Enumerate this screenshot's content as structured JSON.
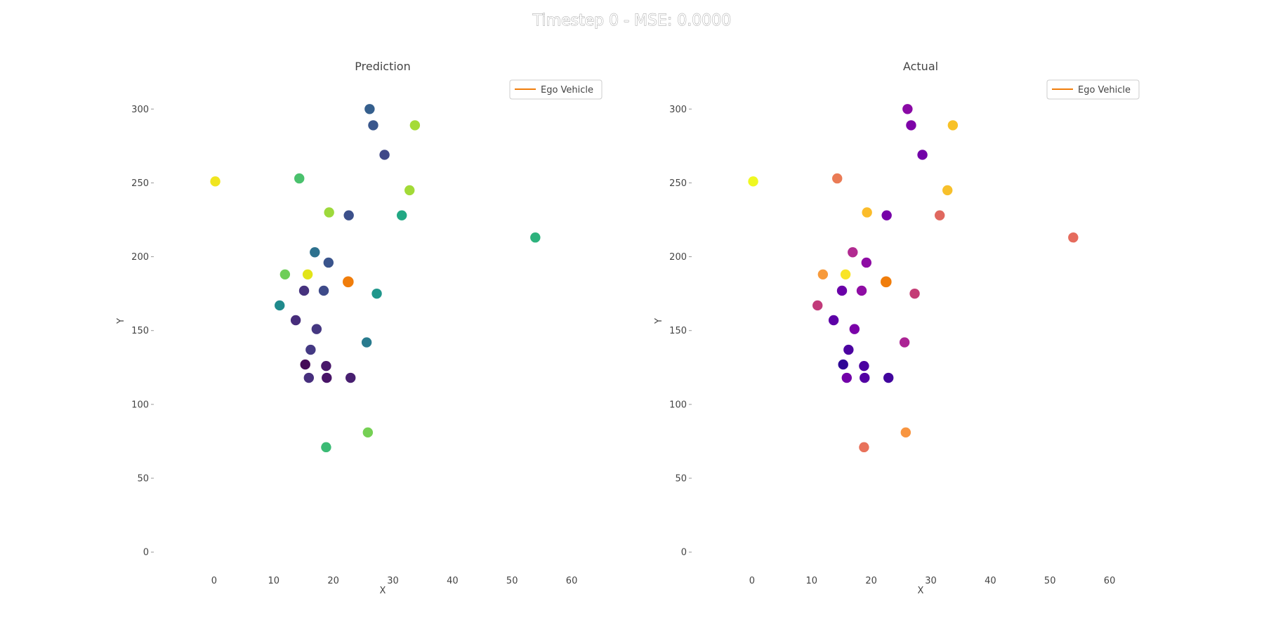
{
  "figure": {
    "suptitle": "Timestep 0 - MSE: 0.0000"
  },
  "chart_data": [
    {
      "type": "scatter",
      "title": "Prediction",
      "xlabel": "X",
      "ylabel": "Y",
      "xlim": [
        -10,
        66
      ],
      "ylim": [
        -8,
        322
      ],
      "xticks": [
        0,
        10,
        20,
        30,
        40,
        50,
        60
      ],
      "yticks": [
        0,
        50,
        100,
        150,
        200,
        250,
        300
      ],
      "grid": false,
      "legend": {
        "placement": "top-right",
        "entries": [
          {
            "label": "Ego Vehicle",
            "color": "#f07d0b"
          }
        ]
      },
      "colormap": "viridis",
      "ego": {
        "x": 22.5,
        "y": 183,
        "color": "#f07d0b"
      },
      "points": [
        {
          "x": 26.1,
          "y": 300,
          "color": "#355f8d"
        },
        {
          "x": 26.7,
          "y": 289,
          "color": "#39568c"
        },
        {
          "x": 33.7,
          "y": 289,
          "color": "#a5db36"
        },
        {
          "x": 28.6,
          "y": 269,
          "color": "#3f4788"
        },
        {
          "x": 0.2,
          "y": 251,
          "color": "#f0e51f"
        },
        {
          "x": 14.3,
          "y": 253,
          "color": "#4ac16d"
        },
        {
          "x": 32.8,
          "y": 245,
          "color": "#a2da37"
        },
        {
          "x": 19.3,
          "y": 230,
          "color": "#9dd93b"
        },
        {
          "x": 22.6,
          "y": 228,
          "color": "#3c508b"
        },
        {
          "x": 31.5,
          "y": 228,
          "color": "#22a884"
        },
        {
          "x": 53.9,
          "y": 213,
          "color": "#2db27d"
        },
        {
          "x": 16.9,
          "y": 203,
          "color": "#2d718e"
        },
        {
          "x": 19.2,
          "y": 196,
          "color": "#3a548c"
        },
        {
          "x": 11.9,
          "y": 188,
          "color": "#6ece58"
        },
        {
          "x": 15.7,
          "y": 188,
          "color": "#e2e418"
        },
        {
          "x": 15.1,
          "y": 177,
          "color": "#46327e"
        },
        {
          "x": 18.4,
          "y": 177,
          "color": "#3e4a89"
        },
        {
          "x": 27.3,
          "y": 175,
          "color": "#1f968b"
        },
        {
          "x": 11.0,
          "y": 167,
          "color": "#1f8a8c"
        },
        {
          "x": 13.7,
          "y": 157,
          "color": "#472d7b"
        },
        {
          "x": 17.2,
          "y": 151,
          "color": "#453781"
        },
        {
          "x": 25.6,
          "y": 142,
          "color": "#297b8e"
        },
        {
          "x": 16.2,
          "y": 137,
          "color": "#443983"
        },
        {
          "x": 15.3,
          "y": 127,
          "color": "#450b57"
        },
        {
          "x": 18.8,
          "y": 126,
          "color": "#481769"
        },
        {
          "x": 15.9,
          "y": 118,
          "color": "#472f7d"
        },
        {
          "x": 18.9,
          "y": 118,
          "color": "#481467"
        },
        {
          "x": 22.9,
          "y": 118,
          "color": "#481f70"
        },
        {
          "x": 25.8,
          "y": 81,
          "color": "#75d054"
        },
        {
          "x": 18.8,
          "y": 71,
          "color": "#3bbb75"
        }
      ]
    },
    {
      "type": "scatter",
      "title": "Actual",
      "xlabel": "X",
      "ylabel": "Y",
      "xlim": [
        -10,
        66
      ],
      "ylim": [
        -8,
        322
      ],
      "xticks": [
        0,
        10,
        20,
        30,
        40,
        50,
        60
      ],
      "yticks": [
        0,
        50,
        100,
        150,
        200,
        250,
        300
      ],
      "grid": false,
      "legend": {
        "placement": "top-right",
        "entries": [
          {
            "label": "Ego Vehicle",
            "color": "#f07d0b"
          }
        ]
      },
      "colormap": "plasma",
      "ego": {
        "x": 22.5,
        "y": 183,
        "color": "#f07d0b"
      },
      "points": [
        {
          "x": 26.1,
          "y": 300,
          "color": "#8a09a5"
        },
        {
          "x": 26.7,
          "y": 289,
          "color": "#7e03a8"
        },
        {
          "x": 33.7,
          "y": 289,
          "color": "#f8c126"
        },
        {
          "x": 28.6,
          "y": 269,
          "color": "#7201a8"
        },
        {
          "x": 0.2,
          "y": 251,
          "color": "#eff821"
        },
        {
          "x": 14.3,
          "y": 253,
          "color": "#ea7b55"
        },
        {
          "x": 32.8,
          "y": 245,
          "color": "#f7c02b"
        },
        {
          "x": 19.3,
          "y": 230,
          "color": "#fbbc2a"
        },
        {
          "x": 22.6,
          "y": 228,
          "color": "#7601a8"
        },
        {
          "x": 31.5,
          "y": 228,
          "color": "#e0685f"
        },
        {
          "x": 53.9,
          "y": 213,
          "color": "#e56b5d"
        },
        {
          "x": 16.9,
          "y": 203,
          "color": "#b12a90"
        },
        {
          "x": 19.2,
          "y": 196,
          "color": "#8e0ca4"
        },
        {
          "x": 11.9,
          "y": 188,
          "color": "#f79a3b"
        },
        {
          "x": 15.7,
          "y": 188,
          "color": "#f9e425"
        },
        {
          "x": 15.1,
          "y": 177,
          "color": "#6a00a8"
        },
        {
          "x": 18.4,
          "y": 177,
          "color": "#8f0da4"
        },
        {
          "x": 27.3,
          "y": 175,
          "color": "#c43c75"
        },
        {
          "x": 11.0,
          "y": 167,
          "color": "#c13a7a"
        },
        {
          "x": 13.7,
          "y": 157,
          "color": "#5c01a6"
        },
        {
          "x": 17.2,
          "y": 151,
          "color": "#7a02a8"
        },
        {
          "x": 25.6,
          "y": 142,
          "color": "#ab2494"
        },
        {
          "x": 16.2,
          "y": 137,
          "color": "#4c02a1"
        },
        {
          "x": 15.3,
          "y": 127,
          "color": "#2e0595"
        },
        {
          "x": 18.8,
          "y": 126,
          "color": "#4a02a0"
        },
        {
          "x": 15.9,
          "y": 118,
          "color": "#7201a8"
        },
        {
          "x": 18.9,
          "y": 118,
          "color": "#5302a3"
        },
        {
          "x": 22.9,
          "y": 118,
          "color": "#41049d"
        },
        {
          "x": 25.8,
          "y": 81,
          "color": "#f89540"
        },
        {
          "x": 18.8,
          "y": 71,
          "color": "#e8725b"
        }
      ]
    }
  ]
}
